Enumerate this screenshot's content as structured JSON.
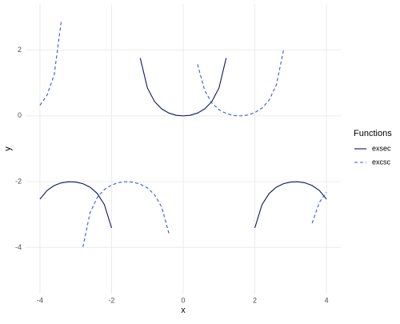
{
  "chart_data": {
    "type": "line",
    "x_label": "x",
    "y_label": "y",
    "legend_title": "Functions",
    "legend": "right",
    "grid": true,
    "xlim": [
      -4.4,
      4.4
    ],
    "ylim": [
      -5.4,
      3.4
    ],
    "xticks": [
      -4,
      -2,
      0,
      2,
      4
    ],
    "yticks": [
      -4,
      -2,
      0,
      2
    ],
    "x": [
      -4,
      -3.8,
      -3.6,
      -3.4,
      -3.2,
      -3,
      -2.8,
      -2.6,
      -2.4,
      -2.2,
      -2,
      -1.8,
      -1.6,
      -1.4,
      -1.2,
      -1,
      -0.8,
      -0.6,
      -0.4,
      -0.2,
      0,
      0.2,
      0.4,
      0.6,
      0.8,
      1,
      1.2,
      1.4,
      1.6,
      1.8,
      2,
      2.2,
      2.4,
      2.6,
      2.8,
      3,
      3.2,
      3.4,
      3.6,
      3.8,
      4
    ],
    "series": [
      {
        "name": "exsec",
        "color": "#0b1761",
        "dashed": false,
        "values": [
          -2.53,
          -2.264,
          -2.115,
          -2.034,
          -2.002,
          -2.01,
          -2.061,
          -2.167,
          -2.356,
          -2.699,
          -3.403,
          null,
          null,
          null,
          1.76,
          0.851,
          0.435,
          0.212,
          0.086,
          0.02,
          0,
          0.02,
          0.086,
          0.212,
          0.435,
          0.851,
          1.76,
          null,
          null,
          null,
          -3.403,
          -2.699,
          -2.356,
          -2.167,
          -2.061,
          -2.01,
          -2.002,
          -2.034,
          -2.115,
          -2.264,
          -2.53
        ]
      },
      {
        "name": "excsc",
        "color": "#3358e0",
        "dashed": true,
        "values": [
          0.321,
          0.634,
          1.26,
          2.914,
          null,
          null,
          -3.985,
          -2.94,
          -2.48,
          -2.237,
          -2.1,
          -2.027,
          -2,
          -2.015,
          -2.073,
          -2.188,
          -2.394,
          -2.771,
          -3.568,
          null,
          null,
          null,
          1.568,
          0.771,
          0.394,
          0.188,
          0.073,
          0.015,
          0,
          0.027,
          0.1,
          0.237,
          0.48,
          0.94,
          1.985,
          null,
          null,
          null,
          -3.26,
          -2.634,
          -2.321
        ]
      }
    ]
  }
}
